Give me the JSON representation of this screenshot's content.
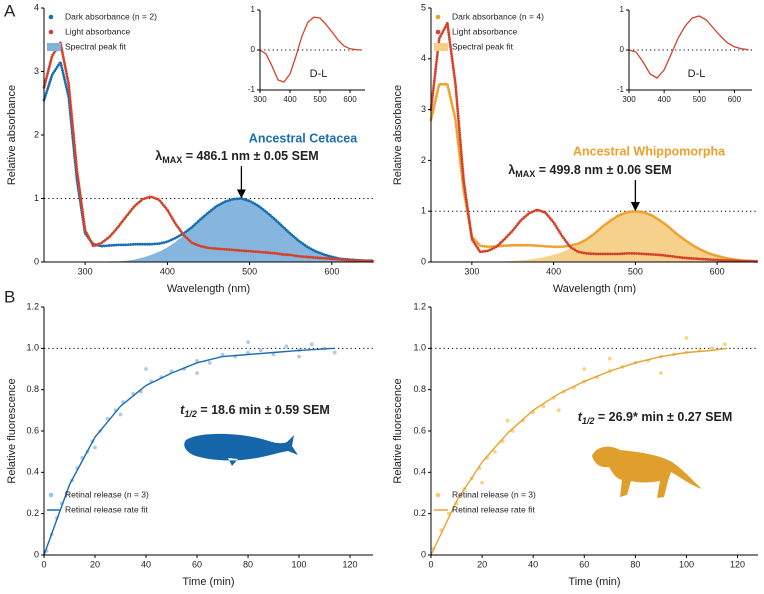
{
  "panel_labels": [
    "A",
    "B"
  ],
  "chart_data": [
    {
      "type": "line",
      "xlabel": "Wavelength (nm)",
      "ylabel": "Relative absorbance",
      "xlim": [
        250,
        650
      ],
      "ylim": [
        0,
        4
      ],
      "xticks": [
        300,
        400,
        500,
        600
      ],
      "yticks": [
        0,
        1,
        2,
        3,
        4
      ],
      "hline": 1,
      "legend": "upper left",
      "x": [
        250,
        260,
        270,
        280,
        290,
        300,
        310,
        320,
        330,
        340,
        350,
        360,
        370,
        380,
        390,
        400,
        410,
        420,
        430,
        440,
        450,
        460,
        470,
        480,
        490,
        500,
        510,
        520,
        530,
        540,
        550,
        560,
        570,
        580,
        590,
        600,
        610,
        620,
        630,
        640,
        650
      ],
      "series": [
        {
          "name": "Dark absorbance (n = 2)",
          "color": "#1a6fb0",
          "mark": "dots",
          "values": [
            2.55,
            2.95,
            3.15,
            2.6,
            1.3,
            0.45,
            0.28,
            0.25,
            0.26,
            0.27,
            0.27,
            0.28,
            0.28,
            0.28,
            0.29,
            0.32,
            0.38,
            0.45,
            0.55,
            0.67,
            0.78,
            0.88,
            0.95,
            0.99,
            1.0,
            0.96,
            0.89,
            0.79,
            0.68,
            0.56,
            0.44,
            0.33,
            0.24,
            0.17,
            0.12,
            0.08,
            0.05,
            0.04,
            0.03,
            0.02,
            0.02
          ]
        },
        {
          "name": "Light absorbance",
          "color": "#d5422c",
          "mark": "dots",
          "values": [
            2.75,
            3.25,
            3.45,
            2.8,
            1.45,
            0.5,
            0.25,
            0.3,
            0.4,
            0.55,
            0.72,
            0.88,
            0.99,
            1.03,
            0.98,
            0.82,
            0.6,
            0.42,
            0.3,
            0.25,
            0.22,
            0.21,
            0.2,
            0.19,
            0.18,
            0.17,
            0.16,
            0.15,
            0.14,
            0.12,
            0.11,
            0.09,
            0.08,
            0.07,
            0.06,
            0.05,
            0.04,
            0.03,
            0.02,
            0.02,
            0.01
          ]
        },
        {
          "name": "Spectral peak fit",
          "color": "#7fb2dc",
          "mark": "area",
          "values": [
            0,
            0,
            0,
            0,
            0,
            0,
            0,
            0,
            0.01,
            0.01,
            0.02,
            0.04,
            0.07,
            0.11,
            0.16,
            0.23,
            0.32,
            0.42,
            0.53,
            0.66,
            0.77,
            0.87,
            0.95,
            0.99,
            1.0,
            0.96,
            0.89,
            0.79,
            0.68,
            0.56,
            0.44,
            0.33,
            0.24,
            0.17,
            0.12,
            0.07,
            0.05,
            0.03,
            0.02,
            0.01,
            0
          ]
        }
      ],
      "annotation": {
        "title": "Ancestral Cetacea",
        "symbol": "λ",
        "subscript": "MAX",
        "text": " = 486.1 nm ± 0.05 SEM",
        "color": "#1a6fb0"
      }
    },
    {
      "type": "line",
      "xlabel": "Wavelength (nm)",
      "ylabel": "Relative absorbance",
      "xlim": [
        250,
        650
      ],
      "ylim": [
        0,
        5
      ],
      "xticks": [
        300,
        400,
        500,
        600
      ],
      "yticks": [
        0,
        1,
        2,
        3,
        4,
        5
      ],
      "hline": 1,
      "legend": "upper left",
      "x": [
        250,
        260,
        270,
        280,
        290,
        300,
        310,
        320,
        330,
        340,
        350,
        360,
        370,
        380,
        390,
        400,
        410,
        420,
        430,
        440,
        450,
        460,
        470,
        480,
        490,
        500,
        510,
        520,
        530,
        540,
        550,
        560,
        570,
        580,
        590,
        600,
        610,
        620,
        630,
        640,
        650
      ],
      "series": [
        {
          "name": "Dark absorbance (n = 4)",
          "color": "#eea02c",
          "mark": "dots",
          "values": [
            2.8,
            3.5,
            3.5,
            2.8,
            1.4,
            0.5,
            0.32,
            0.3,
            0.31,
            0.32,
            0.33,
            0.33,
            0.33,
            0.32,
            0.31,
            0.3,
            0.3,
            0.32,
            0.36,
            0.44,
            0.56,
            0.7,
            0.82,
            0.92,
            0.98,
            1.0,
            0.98,
            0.92,
            0.82,
            0.7,
            0.56,
            0.44,
            0.33,
            0.24,
            0.17,
            0.12,
            0.08,
            0.05,
            0.03,
            0.02,
            0.02
          ]
        },
        {
          "name": "Light absorbance",
          "color": "#d5422c",
          "mark": "dots",
          "values": [
            3.0,
            4.4,
            4.7,
            3.5,
            1.6,
            0.45,
            0.2,
            0.22,
            0.3,
            0.45,
            0.62,
            0.82,
            0.96,
            1.03,
            0.97,
            0.78,
            0.52,
            0.3,
            0.2,
            0.17,
            0.16,
            0.16,
            0.16,
            0.16,
            0.17,
            0.17,
            0.16,
            0.15,
            0.14,
            0.12,
            0.1,
            0.08,
            0.07,
            0.06,
            0.05,
            0.04,
            0.03,
            0.03,
            0.02,
            0.02,
            0.01
          ]
        },
        {
          "name": "Spectral peak fit",
          "color": "#f6cf86",
          "mark": "area",
          "values": [
            0,
            0,
            0,
            0,
            0,
            0,
            0,
            0,
            0.01,
            0.01,
            0.02,
            0.03,
            0.05,
            0.07,
            0.1,
            0.14,
            0.19,
            0.26,
            0.34,
            0.44,
            0.56,
            0.69,
            0.81,
            0.91,
            0.98,
            1.0,
            0.98,
            0.91,
            0.81,
            0.69,
            0.56,
            0.44,
            0.34,
            0.26,
            0.19,
            0.14,
            0.1,
            0.07,
            0.05,
            0.03,
            0.02
          ]
        }
      ],
      "annotation": {
        "title": "Ancestral Whippomorpha",
        "symbol": "λ",
        "subscript": "MAX",
        "text": " = 499.8 nm ± 0.06 SEM",
        "color": "#eea02c"
      }
    },
    {
      "type": "line",
      "label": "D-L",
      "xlim": [
        300,
        650
      ],
      "ylim": [
        -1,
        1
      ],
      "xticks": [
        300,
        400,
        500,
        600
      ],
      "yticks": [
        -1,
        0,
        1
      ],
      "hline": 0,
      "x": [
        300,
        320,
        340,
        360,
        380,
        400,
        420,
        440,
        460,
        480,
        500,
        520,
        540,
        560,
        580,
        600,
        620,
        640
      ],
      "series": [
        {
          "color": "#d5422c",
          "mark": "line",
          "values": [
            0,
            -0.1,
            -0.4,
            -0.75,
            -0.8,
            -0.6,
            -0.15,
            0.35,
            0.7,
            0.82,
            0.8,
            0.64,
            0.45,
            0.25,
            0.1,
            0.03,
            0.01,
            0
          ]
        }
      ]
    },
    {
      "type": "line",
      "label": "D-L",
      "xlim": [
        300,
        650
      ],
      "ylim": [
        -1,
        1
      ],
      "xticks": [
        300,
        400,
        500,
        600
      ],
      "yticks": [
        -1,
        0,
        1
      ],
      "hline": 0,
      "x": [
        300,
        320,
        340,
        360,
        380,
        400,
        420,
        440,
        460,
        480,
        500,
        520,
        540,
        560,
        580,
        600,
        620,
        640
      ],
      "series": [
        {
          "color": "#d5422c",
          "mark": "line",
          "values": [
            0,
            -0.05,
            -0.3,
            -0.6,
            -0.7,
            -0.5,
            -0.1,
            0.3,
            0.6,
            0.8,
            0.85,
            0.75,
            0.55,
            0.35,
            0.18,
            0.08,
            0.03,
            0.01
          ]
        }
      ]
    },
    {
      "type": "scatter",
      "xlabel": "Time (min)",
      "ylabel": "Relative fluorescence",
      "xlim": [
        0,
        129
      ],
      "ylim": [
        0,
        1.2
      ],
      "xticks": [
        0,
        20,
        40,
        60,
        80,
        100,
        120
      ],
      "yticks": [
        0,
        0.2,
        0.4,
        0.6,
        0.8,
        {
          "value": 1,
          "label": "1.0"
        },
        1.2
      ],
      "hline": 1,
      "legend": "lower left",
      "series": [
        {
          "name": "Retinal release (n = 3)",
          "color": "#9cc3ea",
          "mark": "scatter",
          "x": [
            1,
            3,
            5,
            7,
            9,
            11,
            13,
            15,
            17,
            19,
            22,
            25,
            28,
            31,
            35,
            38,
            42,
            46,
            50,
            55,
            60,
            65,
            70,
            75,
            80,
            85,
            90,
            95,
            100,
            105,
            110,
            114,
            40,
            60,
            80,
            100,
            30,
            20
          ],
          "values": [
            0.02,
            0.1,
            0.18,
            0.25,
            0.3,
            0.36,
            0.42,
            0.47,
            0.5,
            0.55,
            0.6,
            0.66,
            0.7,
            0.74,
            0.78,
            0.79,
            0.84,
            0.86,
            0.89,
            0.9,
            0.94,
            0.93,
            0.97,
            0.96,
            0.98,
            0.99,
            0.97,
            1.01,
            0.99,
            1.02,
            1.0,
            0.98,
            0.9,
            0.88,
            1.03,
            0.96,
            0.68,
            0.52
          ]
        },
        {
          "name": "Retinal release rate fit",
          "color": "#1c6bb0",
          "mark": "line",
          "x": [
            0,
            10,
            20,
            30,
            40,
            50,
            60,
            70,
            80,
            90,
            100,
            114
          ],
          "values": [
            0,
            0.34,
            0.57,
            0.72,
            0.82,
            0.88,
            0.93,
            0.96,
            0.97,
            0.98,
            0.99,
            1.0
          ]
        }
      ],
      "annotation": {
        "symbol": "t",
        "subscript": "1/2",
        "text": " = 18.6 min ± 0.59 SEM",
        "color": "#000000"
      }
    },
    {
      "type": "scatter",
      "xlabel": "Time (min)",
      "ylabel": "Relative fluorescence",
      "xlim": [
        0,
        128
      ],
      "ylim": [
        0,
        1.2
      ],
      "xticks": [
        0,
        20,
        40,
        60,
        80,
        100,
        120
      ],
      "yticks": [
        0,
        0.2,
        0.4,
        0.6,
        0.8,
        {
          "value": 1,
          "label": "1.0"
        },
        1.2
      ],
      "hline": 1,
      "legend": "lower left",
      "series": [
        {
          "name": "Retinal release (n = 3)",
          "color": "#f5cb70",
          "mark": "scatter",
          "x": [
            1,
            4,
            7,
            10,
            13,
            16,
            19,
            22,
            25,
            28,
            32,
            36,
            40,
            44,
            48,
            52,
            56,
            60,
            65,
            70,
            75,
            80,
            85,
            90,
            95,
            100,
            105,
            110,
            115,
            30,
            50,
            70,
            90,
            100,
            20,
            60
          ],
          "values": [
            0.03,
            0.12,
            0.2,
            0.25,
            0.32,
            0.37,
            0.42,
            0.47,
            0.5,
            0.55,
            0.6,
            0.65,
            0.69,
            0.72,
            0.76,
            0.79,
            0.81,
            0.84,
            0.86,
            0.89,
            0.91,
            0.93,
            0.94,
            0.96,
            0.97,
            0.98,
            0.99,
            1.0,
            1.02,
            0.65,
            0.7,
            0.95,
            0.88,
            1.05,
            0.35,
            0.9
          ]
        },
        {
          "name": "Retinal release rate fit",
          "color": "#e8a230",
          "mark": "line",
          "x": [
            0,
            10,
            20,
            30,
            40,
            50,
            60,
            70,
            80,
            90,
            100,
            110,
            116
          ],
          "values": [
            0,
            0.26,
            0.45,
            0.59,
            0.7,
            0.78,
            0.84,
            0.89,
            0.93,
            0.96,
            0.98,
            0.99,
            1.0
          ]
        }
      ],
      "annotation": {
        "symbol": "t",
        "subscript": "1/2",
        "text": " = 26.9* min ± 0.27 SEM",
        "color": "#000000"
      }
    }
  ]
}
